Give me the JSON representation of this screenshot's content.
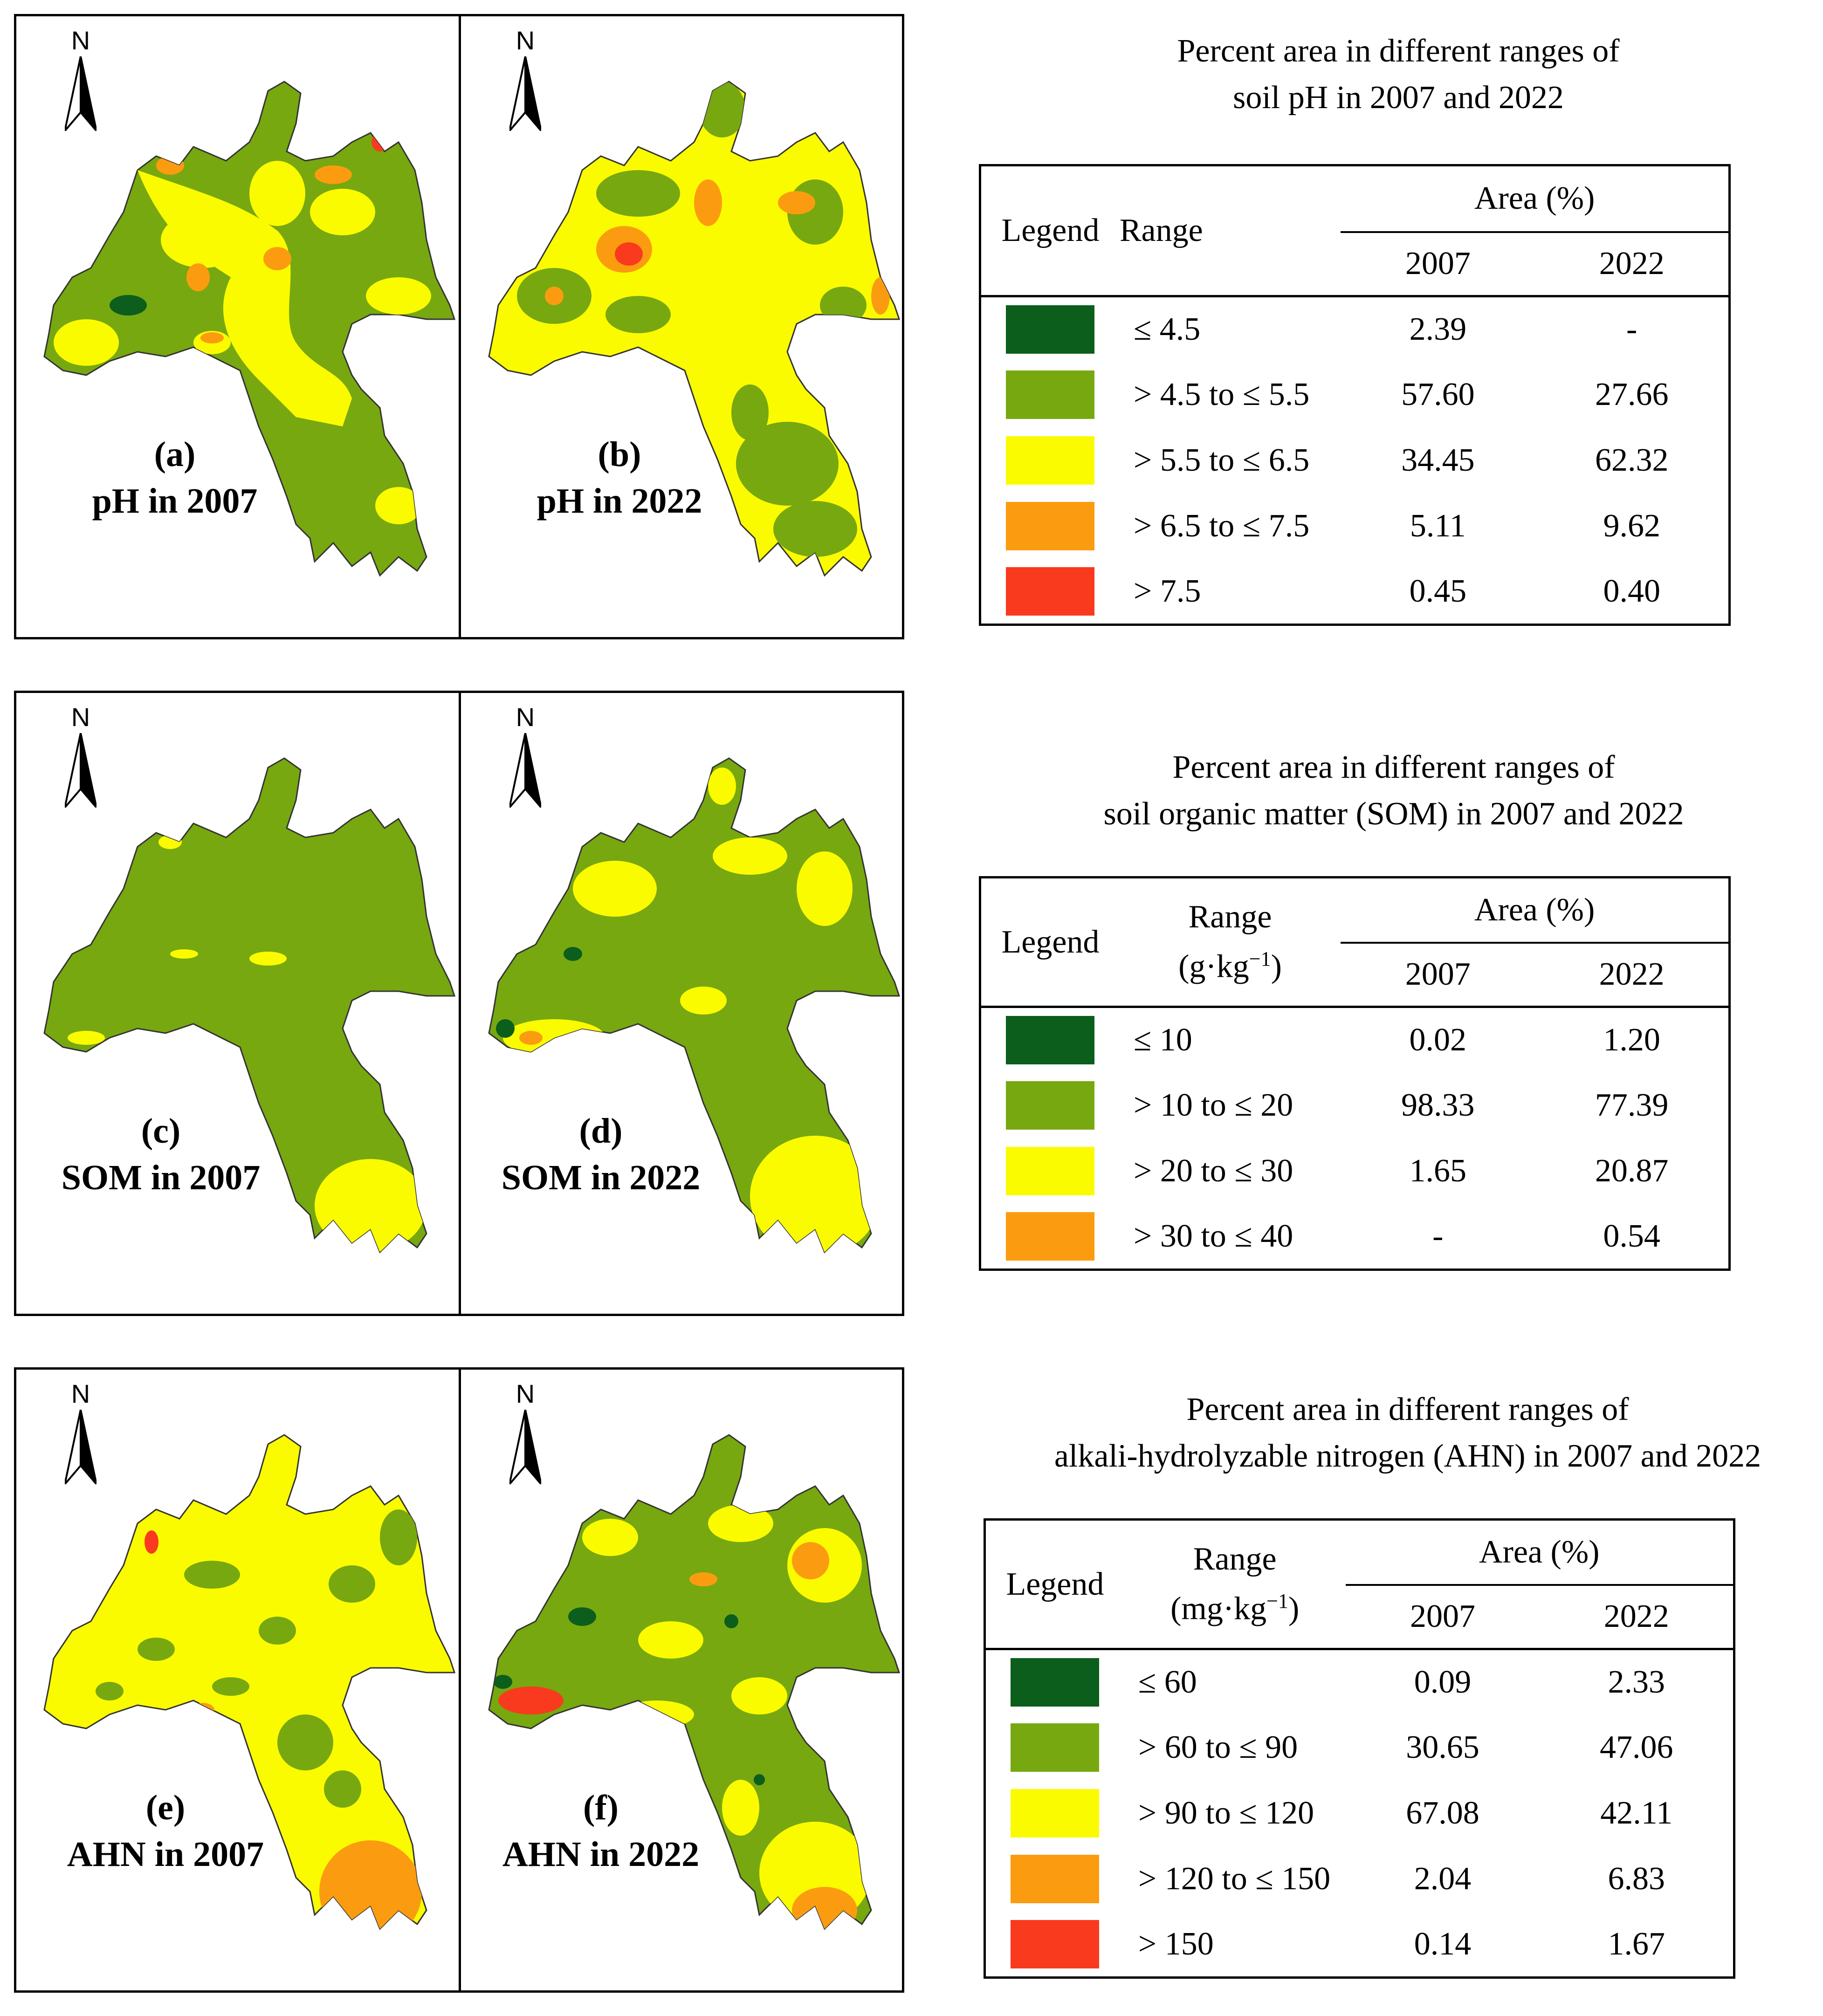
{
  "colors": {
    "dark_green": "#0b5e1c",
    "green": "#77a810",
    "yellow": "#fbfb00",
    "orange": "#fb9c10",
    "red": "#f93a1e"
  },
  "north_label": "N",
  "panels": [
    {
      "letter": "(a)",
      "caption": "pH in 2007"
    },
    {
      "letter": "(b)",
      "caption": "pH in 2022"
    },
    {
      "letter": "(c)",
      "caption": "SOM in 2007"
    },
    {
      "letter": "(d)",
      "caption": "SOM in 2022"
    },
    {
      "letter": "(e)",
      "caption": "AHN in 2007"
    },
    {
      "letter": "(f)",
      "caption": "AHN in 2022"
    }
  ],
  "tables": [
    {
      "title_line1": "Percent area in different ranges of",
      "title_line2": "soil pH in 2007 and 2022",
      "legend_header": "Legend",
      "range_header": "Range",
      "range_unit": "",
      "area_header": "Area (%)",
      "year1": "2007",
      "year2": "2022",
      "rows": [
        {
          "color": "dark_green",
          "range": "≤ 4.5",
          "v2007": "2.39",
          "v2022": "-"
        },
        {
          "color": "green",
          "range": "> 4.5 to ≤ 5.5",
          "v2007": "57.60",
          "v2022": "27.66"
        },
        {
          "color": "yellow",
          "range": "> 5.5 to ≤ 6.5",
          "v2007": "34.45",
          "v2022": "62.32"
        },
        {
          "color": "orange",
          "range": "> 6.5 to ≤ 7.5",
          "v2007": "5.11",
          "v2022": "9.62"
        },
        {
          "color": "red",
          "range": "> 7.5",
          "v2007": "0.45",
          "v2022": "0.40"
        }
      ]
    },
    {
      "title_line1": "Percent area in different ranges of",
      "title_line2": "soil organic matter (SOM) in 2007 and 2022",
      "legend_header": "Legend",
      "range_header": "Range",
      "range_unit": "(g·kg",
      "range_unit_exp": "−1",
      "range_unit_close": ")",
      "area_header": "Area (%)",
      "year1": "2007",
      "year2": "2022",
      "rows": [
        {
          "color": "dark_green",
          "range": "≤ 10",
          "v2007": "0.02",
          "v2022": "1.20"
        },
        {
          "color": "green",
          "range": "> 10 to ≤ 20",
          "v2007": "98.33",
          "v2022": "77.39"
        },
        {
          "color": "yellow",
          "range": "> 20 to ≤ 30",
          "v2007": "1.65",
          "v2022": "20.87"
        },
        {
          "color": "orange",
          "range": "> 30 to ≤ 40",
          "v2007": "-",
          "v2022": "0.54"
        }
      ]
    },
    {
      "title_line1": "Percent area in different ranges of",
      "title_line2": "alkali-hydrolyzable nitrogen (AHN) in 2007 and 2022",
      "legend_header": "Legend",
      "range_header": "Range",
      "range_unit": "(mg·kg",
      "range_unit_exp": "−1",
      "range_unit_close": ")",
      "area_header": "Area (%)",
      "year1": "2007",
      "year2": "2022",
      "rows": [
        {
          "color": "dark_green",
          "range": "≤ 60",
          "v2007": "0.09",
          "v2022": "2.33"
        },
        {
          "color": "green",
          "range": "> 60 to ≤ 90",
          "v2007": "30.65",
          "v2022": "47.06"
        },
        {
          "color": "yellow",
          "range": "> 90 to ≤ 120",
          "v2007": "67.08",
          "v2022": "42.11"
        },
        {
          "color": "orange",
          "range": "> 120 to ≤ 150",
          "v2007": "2.04",
          "v2022": "6.83"
        },
        {
          "color": "red",
          "range": "> 150",
          "v2007": "0.14",
          "v2022": "1.67"
        }
      ]
    }
  ]
}
